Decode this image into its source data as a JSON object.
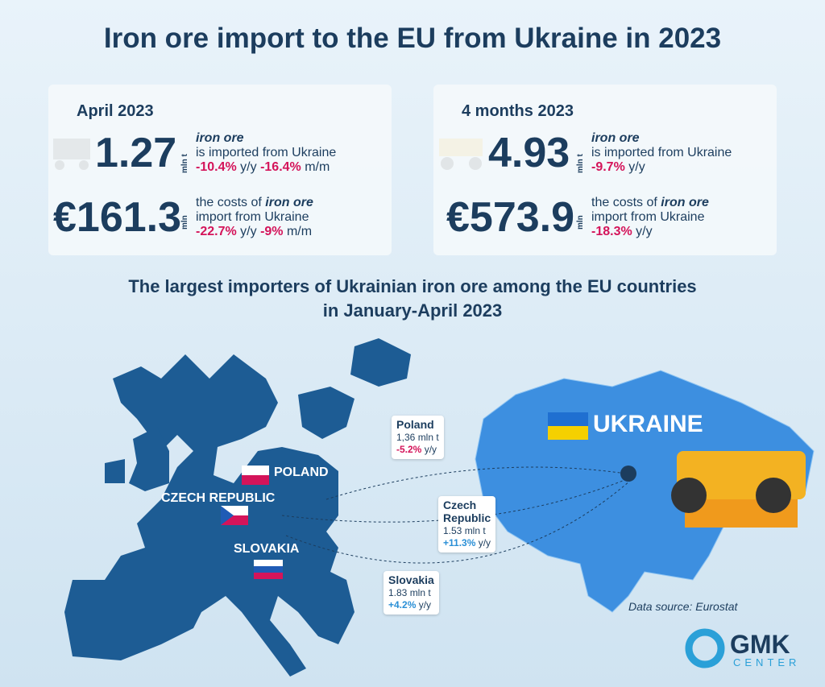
{
  "title": "Iron ore import to the EU from Ukraine in 2023",
  "panels": [
    {
      "period": "April 2023",
      "stats": [
        {
          "value": "1.27",
          "unit": "mln t",
          "label_italic": "iron ore",
          "label": "is imported from Ukraine",
          "changes": [
            {
              "value": "-10.4%",
              "period": "y/y"
            },
            {
              "value": "-16.4%",
              "period": "m/m"
            }
          ]
        },
        {
          "value": "€161.3",
          "unit": "mln",
          "label_prefix": "the costs of",
          "label_italic": "iron ore",
          "label": "import from Ukraine",
          "changes": [
            {
              "value": "-22.7%",
              "period": "y/y"
            },
            {
              "value": "-9%",
              "period": "m/m"
            }
          ]
        }
      ]
    },
    {
      "period": "4 months 2023",
      "stats": [
        {
          "value": "4.93",
          "unit": "mln t",
          "label_italic": "iron ore",
          "label": "is imported from Ukraine",
          "changes": [
            {
              "value": "-9.7%",
              "period": "y/y"
            }
          ]
        },
        {
          "value": "€573.9",
          "unit": "mln",
          "label_prefix": "the costs of",
          "label_italic": "iron ore",
          "label": "import from Ukraine",
          "changes": [
            {
              "value": "-18.3%",
              "period": "y/y"
            }
          ]
        }
      ]
    }
  ],
  "subtitle": [
    "The largest importers of Ukrainian iron ore among the EU countries",
    "in January-April 2023"
  ],
  "map_labels": {
    "poland": "POLAND",
    "czech": "CZECH REPUBLIC",
    "slovakia": "SLOVAKIA",
    "ukraine": "UKRAINE"
  },
  "callouts": [
    {
      "name": [
        "Poland"
      ],
      "volume": "1,36 mln t",
      "change": "-5.2%",
      "period": "y/y"
    },
    {
      "name": [
        "Czech",
        "Republic"
      ],
      "volume": "1.53 mln t",
      "change": "+11.3%",
      "period": "y/y"
    },
    {
      "name": [
        "Slovakia"
      ],
      "volume": "1.83 mln t",
      "change": "+4.2%",
      "period": "y/y"
    }
  ],
  "source": "Data source: Eurostat",
  "logo": {
    "name": "GMK",
    "sub": "CENTER"
  }
}
